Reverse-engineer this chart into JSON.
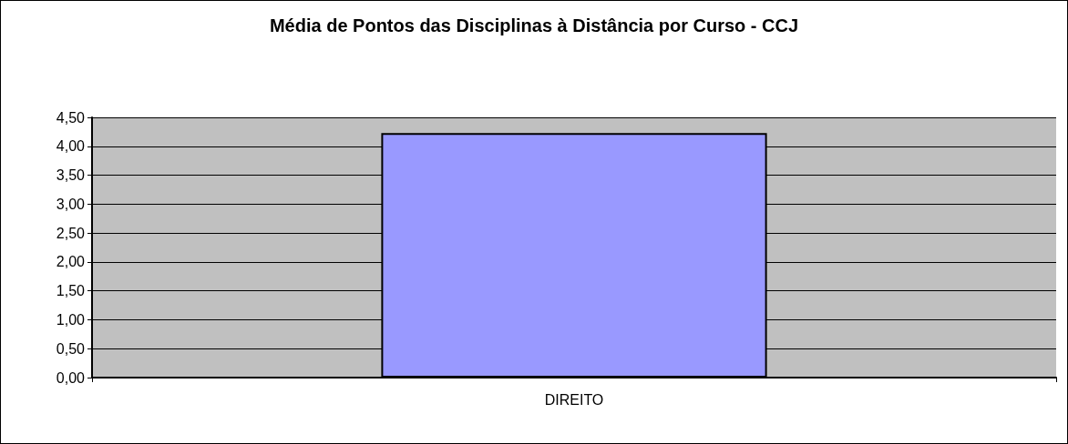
{
  "chart_data": {
    "type": "bar",
    "title": "Média de Pontos das Disciplinas à Distância por Curso - CCJ",
    "categories": [
      "DIREITO"
    ],
    "values": [
      4.23
    ],
    "color": "#9999ff",
    "ylim": [
      0,
      4.5
    ],
    "yticks": [
      {
        "value": 0,
        "label": "0,00"
      },
      {
        "value": 0.5,
        "label": "0,50"
      },
      {
        "value": 1,
        "label": "1,00"
      },
      {
        "value": 1.5,
        "label": "1,50"
      },
      {
        "value": 2,
        "label": "2,00"
      },
      {
        "value": 2.5,
        "label": "2,50"
      },
      {
        "value": 3,
        "label": "3,00"
      },
      {
        "value": 3.5,
        "label": "3,50"
      },
      {
        "value": 4,
        "label": "4,00"
      },
      {
        "value": 4.5,
        "label": "4,50"
      }
    ],
    "grid": "y"
  }
}
